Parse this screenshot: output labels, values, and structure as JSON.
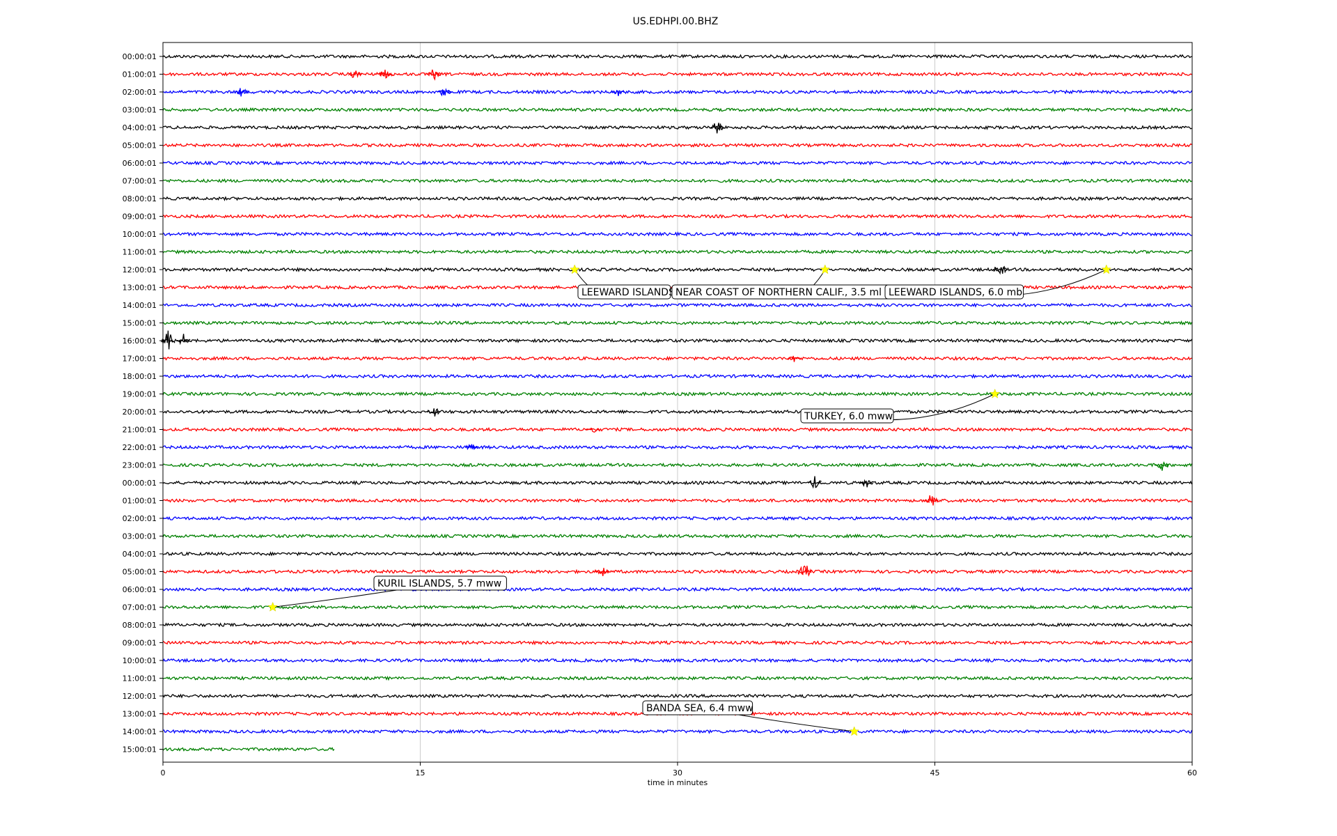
{
  "chart_data": {
    "type": "line",
    "title": "US.EDHPI.00.BHZ",
    "xlabel": "time in minutes",
    "ylabel": "",
    "xlim": [
      0,
      60
    ],
    "x_ticks": [
      "0",
      "15",
      "30",
      "45",
      "60"
    ],
    "x_tick_values": [
      0,
      15,
      30,
      45,
      60
    ],
    "grid": "vertical lines at x ticks",
    "trace_colors": [
      "#000000",
      "#ff0000",
      "#0000ff",
      "#008000"
    ],
    "row_labels": [
      "00:00:01",
      "01:00:01",
      "02:00:01",
      "03:00:01",
      "04:00:01",
      "05:00:01",
      "06:00:01",
      "07:00:01",
      "08:00:01",
      "09:00:01",
      "10:00:01",
      "11:00:01",
      "12:00:01",
      "13:00:01",
      "14:00:01",
      "15:00:01",
      "16:00:01",
      "17:00:01",
      "18:00:01",
      "19:00:01",
      "20:00:01",
      "21:00:01",
      "22:00:01",
      "23:00:01",
      "00:00:01",
      "01:00:01",
      "02:00:01",
      "03:00:01",
      "04:00:01",
      "05:00:01",
      "06:00:01",
      "07:00:01",
      "08:00:01",
      "09:00:01",
      "10:00:01",
      "11:00:01",
      "12:00:01",
      "13:00:01",
      "14:00:01",
      "15:00:01"
    ],
    "last_row_end_minutes": 10,
    "events": [
      {
        "label": "LEEWARD ISLANDS",
        "row": 12,
        "minute": 24
      },
      {
        "label": "NEAR COAST OF NORTHERN CALIF., 3.5 ml",
        "row": 12,
        "minute": 38.6
      },
      {
        "label": "LEEWARD ISLANDS, 6.0 mb",
        "row": 12,
        "minute": 55
      },
      {
        "label": "TURKEY, 6.0 mww",
        "row": 19,
        "minute": 48.5
      },
      {
        "label": "KURIL ISLANDS, 5.7 mww",
        "row": 31,
        "minute": 6.4
      },
      {
        "label": "BANDA SEA, 6.4 mww",
        "row": 38,
        "minute": 40.3
      }
    ],
    "marker_color": "#ffff00"
  }
}
